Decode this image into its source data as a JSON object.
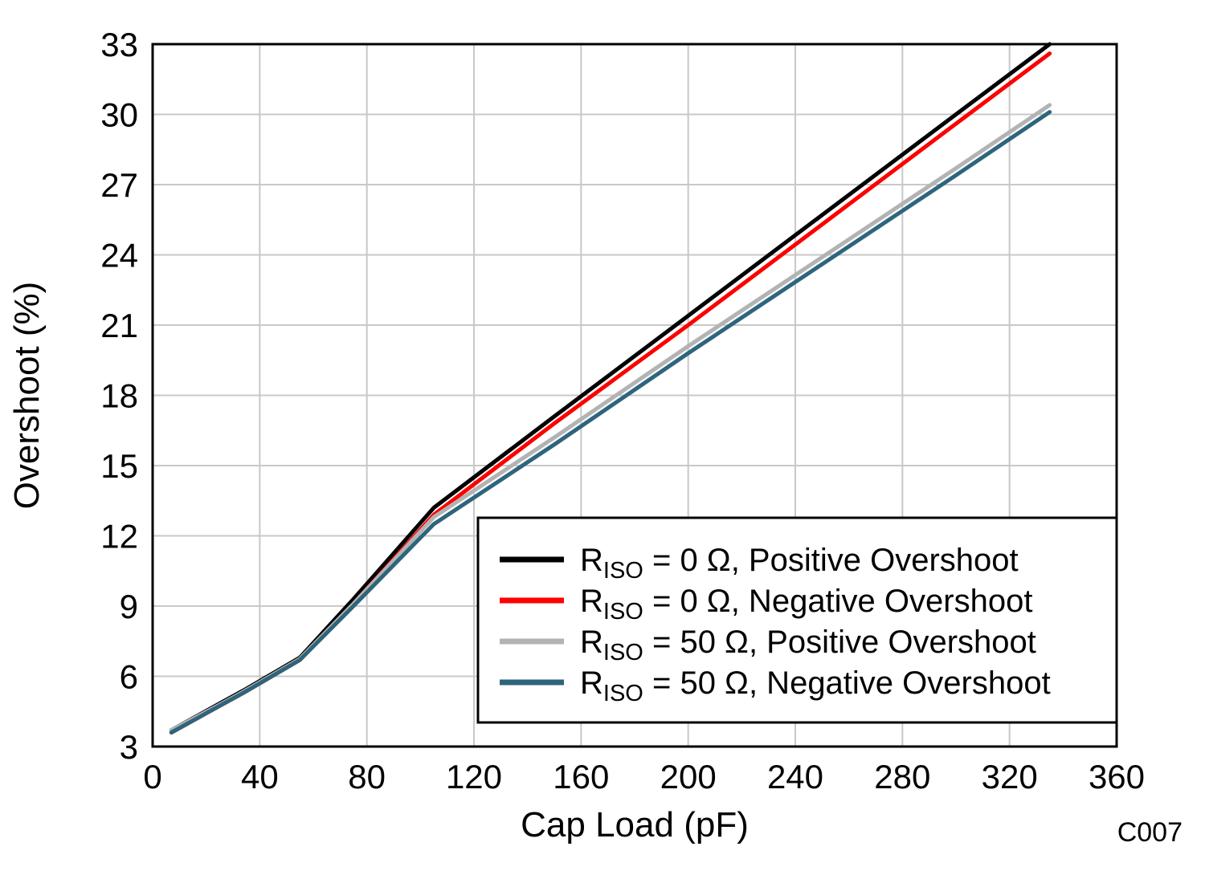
{
  "figure": {
    "code": "C007",
    "background": "#ffffff",
    "grid_color": "#c8c8c8",
    "axis_color": "#000000",
    "code_color": "#a9b2bc",
    "legend_border_color": "#000000",
    "legend_background": "#ffffff"
  },
  "chart_data": {
    "type": "line",
    "title": "",
    "xlabel": "Cap Load (pF)",
    "ylabel": "Overshoot (%)",
    "xlim": [
      0,
      360
    ],
    "ylim": [
      3,
      33
    ],
    "xticks": [
      0,
      40,
      80,
      120,
      160,
      200,
      240,
      280,
      320,
      360
    ],
    "yticks": [
      3,
      6,
      9,
      12,
      15,
      18,
      21,
      24,
      27,
      30,
      33
    ],
    "grid": true,
    "legend_position": "lower-right",
    "x": [
      7,
      26,
      34,
      55,
      75,
      105,
      150,
      200,
      250,
      300,
      335
    ],
    "series": [
      {
        "name": "RISO = 0 Ohm, Positive Overshoot",
        "label_pre": "R",
        "label_sub": "ISO",
        "label_post": " = 0 Ω, Positive Overshoot",
        "color": "#000000",
        "values": [
          3.7,
          4.9,
          5.4,
          6.8,
          9.3,
          13.2,
          17.1,
          21.4,
          25.7,
          30.0,
          33.0
        ]
      },
      {
        "name": "RISO = 0 Ohm, Negative Overshoot",
        "label_pre": "R",
        "label_sub": "ISO",
        "label_post": " = 0 Ω, Negative Overshoot",
        "color": "#fe0000",
        "values": [
          3.6,
          4.8,
          5.3,
          6.7,
          9.1,
          12.9,
          16.8,
          21.0,
          25.3,
          29.6,
          32.6
        ]
      },
      {
        "name": "RISO = 50 Ohm, Positive Overshoot",
        "label_pre": "R",
        "label_sub": "ISO",
        "label_post": " = 50 Ω, Positive Overshoot",
        "color": "#b3b3b3",
        "values": [
          3.7,
          4.85,
          5.35,
          6.75,
          9.1,
          12.8,
          16.2,
          20.1,
          23.9,
          27.7,
          30.4
        ]
      },
      {
        "name": "RISO = 50 Ohm, Negative Overshoot",
        "label_pre": "R",
        "label_sub": "ISO",
        "label_post": " = 50 Ω, Negative Overshoot",
        "color": "#2e657d",
        "values": [
          3.6,
          4.8,
          5.3,
          6.7,
          9.0,
          12.5,
          15.9,
          19.8,
          23.6,
          27.4,
          30.1
        ]
      }
    ]
  }
}
